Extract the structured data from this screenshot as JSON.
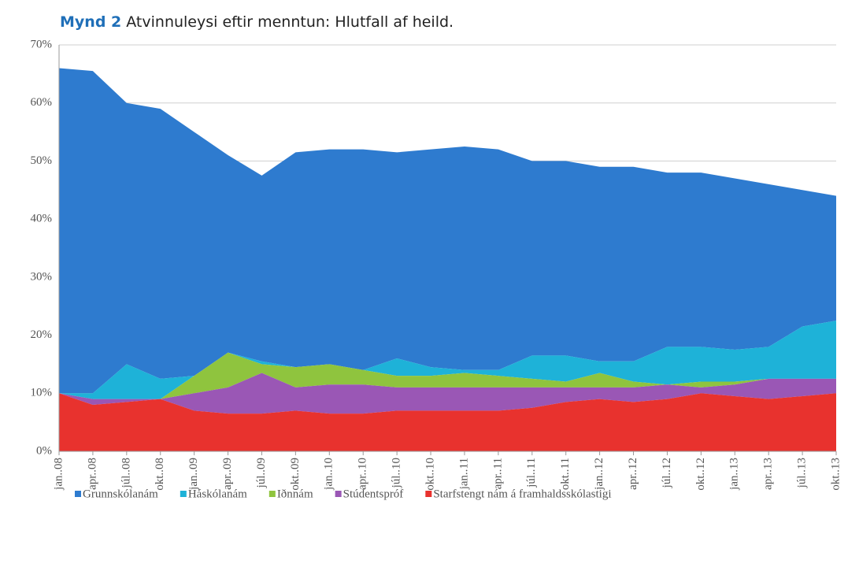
{
  "chart_data": {
    "type": "stacked_area",
    "title_prefix": "Mynd 2",
    "title": "Atvinnuleysi eftir menntun: Hlutfall af heild.",
    "categories": [
      "jan..08",
      "apr..08",
      "júl..08",
      "okt..08",
      "jan..09",
      "apr..09",
      "júl..09",
      "okt..09",
      "jan..10",
      "apr..10",
      "júl..10",
      "okt..10",
      "jan..11",
      "apr..11",
      "júl..11",
      "okt..11",
      "jan..12",
      "apr..12",
      "júl..12",
      "okt..12",
      "jan..13",
      "apr..13",
      "júl..13",
      "okt..13"
    ],
    "series": [
      {
        "name": "Grunnskólanám",
        "color": "#2e7bcf",
        "values": [
          56,
          55.5,
          45,
          46.5,
          42,
          34,
          32,
          37,
          37,
          38,
          35.5,
          37.5,
          38.5,
          38,
          33.5,
          33.5,
          33.5,
          33.5,
          30,
          30,
          29.5,
          28,
          23.5,
          21.5
        ]
      },
      {
        "name": "Háskólanám",
        "color": "#1eb2d8",
        "values": [
          0,
          1,
          6,
          3.5,
          0,
          0,
          0.5,
          0,
          0,
          0,
          3,
          1.5,
          0.5,
          1,
          4,
          4.5,
          2,
          3.5,
          6.5,
          6,
          5.5,
          5.5,
          9,
          10
        ]
      },
      {
        "name": "Iðnnám",
        "color": "#8fc43e",
        "values": [
          0,
          0,
          0,
          0,
          3,
          6,
          1.5,
          3.5,
          3.5,
          2.5,
          2,
          2,
          2.5,
          2,
          1.5,
          1,
          2.5,
          1,
          0,
          1,
          0.5,
          0,
          0,
          0
        ]
      },
      {
        "name": "Stúdentspróf",
        "color": "#9a57b5",
        "values": [
          0,
          1,
          0.5,
          0,
          3,
          4.5,
          7,
          4,
          5,
          5,
          4,
          4,
          4,
          4,
          3.5,
          2.5,
          2,
          2.5,
          2.5,
          1,
          2,
          3.5,
          3,
          2.5
        ]
      },
      {
        "name": "Starfstengt nám á framhaldsskólastigi",
        "color": "#e8322e",
        "values": [
          10,
          8,
          8.5,
          9,
          7,
          6.5,
          6.5,
          7,
          6.5,
          6.5,
          7,
          7,
          7,
          7,
          7.5,
          8.5,
          9,
          8.5,
          9,
          10,
          9.5,
          9,
          9.5,
          10
        ]
      }
    ],
    "ylim": [
      0,
      70
    ],
    "yticks": [
      {
        "value": 0,
        "label": "0%"
      },
      {
        "value": 10,
        "label": "10%"
      },
      {
        "value": 20,
        "label": "20%"
      },
      {
        "value": 30,
        "label": "30%"
      },
      {
        "value": 40,
        "label": "40%"
      },
      {
        "value": 50,
        "label": "50%"
      },
      {
        "value": 60,
        "label": "60%"
      },
      {
        "value": 70,
        "label": "70%"
      }
    ],
    "grid": true,
    "legend": "bottom"
  }
}
